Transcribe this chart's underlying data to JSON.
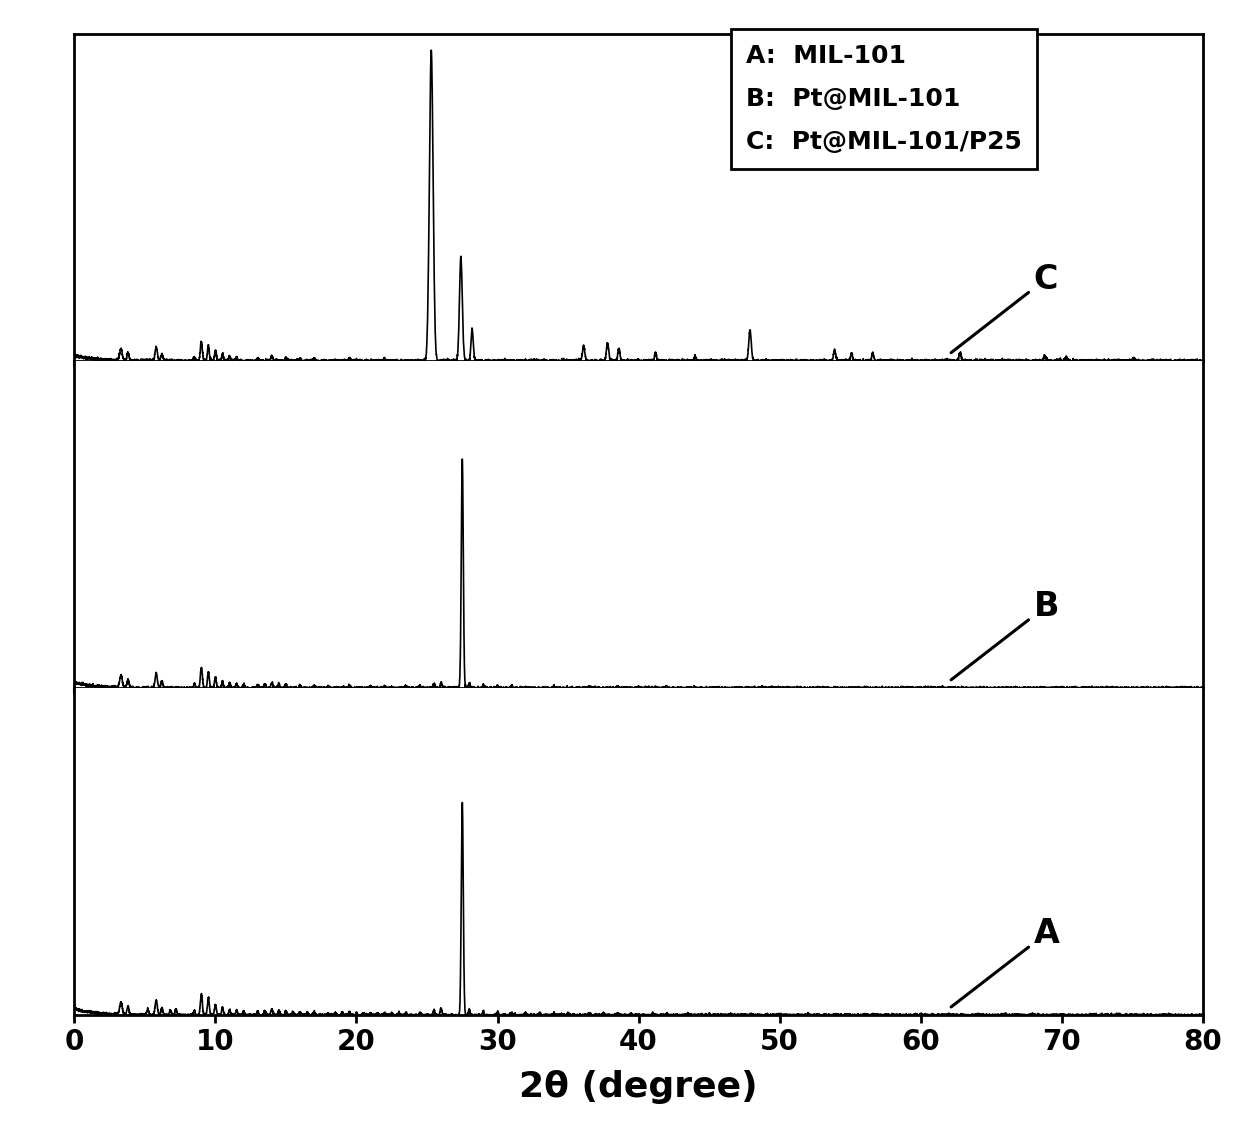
{
  "xlabel": "2θ (degree)",
  "xlim": [
    0,
    80
  ],
  "xticks": [
    0,
    10,
    20,
    30,
    40,
    50,
    60,
    70,
    80
  ],
  "legend_entries": [
    "A:  MIL-101",
    "B:  Pt@MIL-101",
    "C:  Pt@MIL-101/P25"
  ],
  "background_color": "#ffffff",
  "line_color": "#000000",
  "xlabel_fontsize": 26,
  "tick_fontsize": 20,
  "legend_fontsize": 18,
  "label_fontsize": 24
}
